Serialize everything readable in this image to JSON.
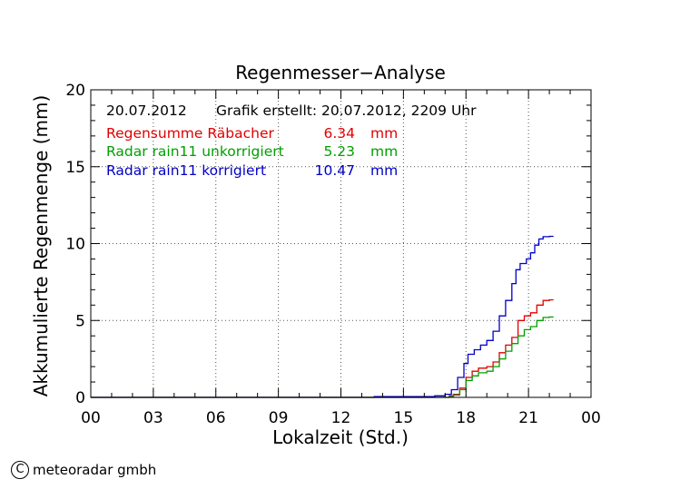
{
  "chart_data": {
    "type": "line",
    "title": "Regenmesser−Analyse",
    "xlabel": "Lokalzeit (Std.)",
    "ylabel": "Akkumulierte Regenmenge (mm)",
    "x_ticks": [
      "00",
      "03",
      "06",
      "09",
      "12",
      "15",
      "18",
      "21",
      "00"
    ],
    "y_ticks": [
      "0",
      "5",
      "10",
      "15",
      "20"
    ],
    "xlim": [
      0,
      24
    ],
    "ylim": [
      0,
      20
    ],
    "grid": true,
    "info": {
      "date": "20.07.2012",
      "created": "Grafik erstellt: 20.07.2012, 2209 Uhr"
    },
    "legend_rows": [
      {
        "label": "Regensumme Räbacher",
        "value": "6.34",
        "unit": "mm",
        "color": "#e00000"
      },
      {
        "label": "Radar rain11 unkorrigiert",
        "value": "5.23",
        "unit": "mm",
        "color": "#00a000"
      },
      {
        "label": "Radar rain11 korrigiert",
        "value": "10.47",
        "unit": "mm",
        "color": "#0000c8"
      }
    ],
    "series": [
      {
        "color": "#e00000",
        "x": [
          0,
          16.9,
          17.2,
          17.4,
          17.7,
          18.0,
          18.3,
          18.6,
          19.0,
          19.3,
          19.6,
          19.9,
          20.2,
          20.5,
          20.8,
          21.1,
          21.4,
          21.7,
          22.0,
          22.2
        ],
        "y": [
          0,
          0,
          0.1,
          0.2,
          0.6,
          1.3,
          1.7,
          1.9,
          2.0,
          2.3,
          2.9,
          3.4,
          3.9,
          5.0,
          5.3,
          5.5,
          6.0,
          6.3,
          6.34,
          6.34
        ]
      },
      {
        "color": "#00a000",
        "x": [
          0,
          16.9,
          17.2,
          17.4,
          17.7,
          18.0,
          18.3,
          18.6,
          19.0,
          19.3,
          19.6,
          19.9,
          20.2,
          20.5,
          20.8,
          21.1,
          21.4,
          21.7,
          22.0,
          22.2
        ],
        "y": [
          0,
          0,
          0.05,
          0.15,
          0.5,
          1.1,
          1.4,
          1.6,
          1.7,
          2.0,
          2.5,
          3.0,
          3.5,
          4.0,
          4.4,
          4.6,
          5.0,
          5.2,
          5.23,
          5.23
        ]
      },
      {
        "color": "#0000c8",
        "x": [
          0,
          13.5,
          13.6,
          15.0,
          16.5,
          17.0,
          17.3,
          17.6,
          17.9,
          18.1,
          18.4,
          18.7,
          19.0,
          19.3,
          19.6,
          19.9,
          20.2,
          20.4,
          20.6,
          20.9,
          21.1,
          21.3,
          21.5,
          21.7,
          22.0,
          22.2
        ],
        "y": [
          0,
          0,
          0.05,
          0.05,
          0.1,
          0.2,
          0.5,
          1.3,
          2.2,
          2.8,
          3.1,
          3.4,
          3.7,
          4.3,
          5.3,
          6.3,
          7.4,
          8.3,
          8.7,
          9.0,
          9.4,
          9.9,
          10.3,
          10.45,
          10.47,
          10.47
        ]
      }
    ]
  },
  "footer": {
    "copyright_symbol": "C",
    "company": "meteoradar gmbh"
  }
}
